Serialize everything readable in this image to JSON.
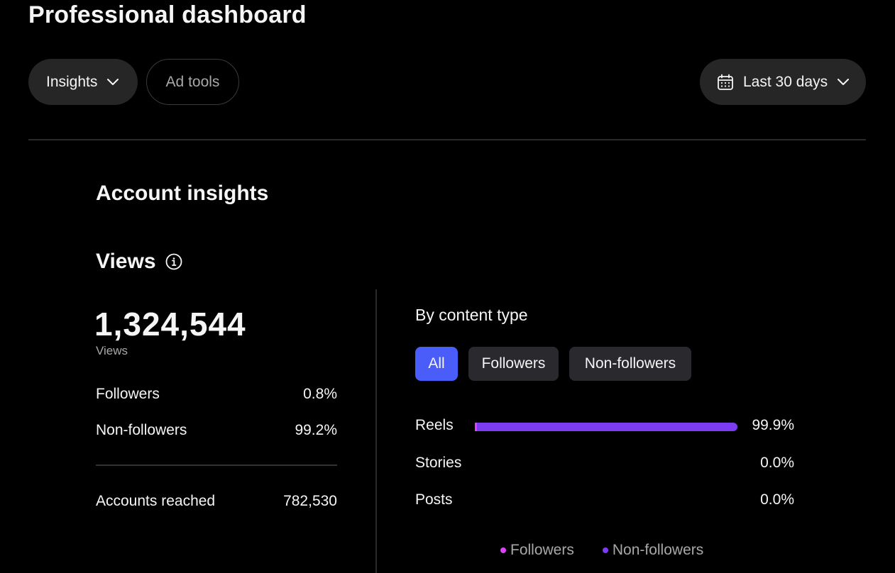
{
  "header": {
    "title": "Professional dashboard",
    "insights_label": "Insights",
    "ad_tools_label": "Ad tools",
    "date_range_label": "Last 30 days"
  },
  "account_insights": {
    "title": "Account insights"
  },
  "views": {
    "title": "Views",
    "total": "1,324,544",
    "total_label": "Views",
    "followers_label": "Followers",
    "followers_pct": "0.8%",
    "nonfollowers_label": "Non-followers",
    "nonfollowers_pct": "99.2%",
    "accounts_reached_label": "Accounts reached",
    "accounts_reached_value": "782,530"
  },
  "content_type": {
    "title": "By content type",
    "filters": [
      "All",
      "Followers",
      "Non-followers"
    ],
    "selected_filter": "All",
    "rows": [
      {
        "label": "Reels",
        "pct": "99.9%",
        "value": 99.9
      },
      {
        "label": "Stories",
        "pct": "0.0%",
        "value": 0.0
      },
      {
        "label": "Posts",
        "pct": "0.0%",
        "value": 0.0
      }
    ],
    "legend": [
      {
        "label": "Followers",
        "color": "#e040fb"
      },
      {
        "label": "Non-followers",
        "color": "#7c3cf2"
      }
    ]
  },
  "colors": {
    "accent": "#4a5df9",
    "followers": "#e040fb",
    "nonfollowers": "#7c3cf2"
  }
}
